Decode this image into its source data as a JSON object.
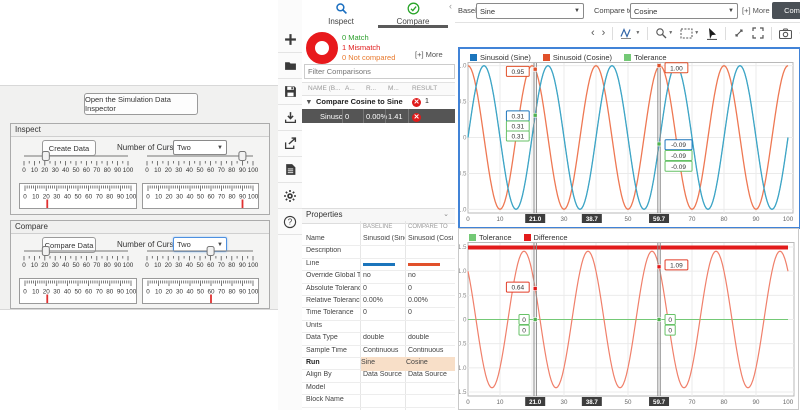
{
  "left_panel": {
    "open_button": "Open the Simulation Data Inspector",
    "scale": {
      "min": 0,
      "max": 100,
      "step": 10
    },
    "sections": [
      {
        "title": "Inspect",
        "button": "Create Data",
        "cursors_label": "Number of Cursors",
        "cursors_value": "Two",
        "slider_values": [
          21,
          90
        ],
        "gauge_values": [
          21,
          90
        ],
        "dropdown_focused": false
      },
      {
        "title": "Compare",
        "button": "Compare Data",
        "cursors_label": "Number of Cursors",
        "cursors_value": "Two",
        "slider_values": [
          21,
          60
        ],
        "gauge_values": [
          21,
          60
        ],
        "dropdown_focused": true
      }
    ]
  },
  "toolbar": {
    "icons": [
      "add",
      "open-folder",
      "save",
      "import",
      "export",
      "report",
      "settings",
      "help"
    ]
  },
  "middle_panel": {
    "tabs": [
      {
        "label": "Inspect",
        "active": false
      },
      {
        "label": "Compare",
        "active": true
      }
    ],
    "summary": {
      "match": "0 Match",
      "mismatch": "1 Mismatch",
      "not_compared": "0 Not compared",
      "more_link": "[+] More",
      "match_color": "#2da02d",
      "mismatch_color": "#e01b1b",
      "not_compared_color": "#e87a2e"
    },
    "filter_placeholder": "Filter Comparisons",
    "comparison_table": {
      "headers": [
        "NAME (B...",
        "A...",
        "R...",
        "M...",
        "RESULT"
      ],
      "group_row": {
        "label": "Compare Cosine to Sine",
        "result_count": "1"
      },
      "rows": [
        {
          "name": "Sinusoid",
          "abs": "0",
          "rel": "0.00%",
          "max": "1.41",
          "result": "mismatch",
          "selected": true
        }
      ]
    },
    "properties": {
      "title": "Properties",
      "columns": [
        "BASELINE",
        "COMPARE TO"
      ],
      "rows": [
        {
          "label": "Name",
          "baseline": "Sinusoid (Sine)",
          "compare": "Sinusoid (Cosi"
        },
        {
          "label": "Description",
          "baseline": "",
          "compare": ""
        },
        {
          "label": "Line",
          "baseline": "#1b75bc",
          "compare": "#e1502a",
          "is_line": true
        },
        {
          "label": "Override Global Tole",
          "baseline": "no",
          "compare": "no"
        },
        {
          "label": "Absolute Tolerance",
          "baseline": "0",
          "compare": "0"
        },
        {
          "label": "Relative Tolerance",
          "baseline": "0.00%",
          "compare": "0.00%"
        },
        {
          "label": "Time Tolerance",
          "baseline": "0",
          "compare": "0"
        },
        {
          "label": "Units",
          "baseline": "",
          "compare": ""
        },
        {
          "label": "Data Type",
          "baseline": "double",
          "compare": "double"
        },
        {
          "label": "Sample Time",
          "baseline": "Continuous",
          "compare": "Continuous"
        },
        {
          "label": "Run",
          "baseline": "Sine",
          "compare": "Cosine",
          "highlight": true,
          "bold": true
        },
        {
          "label": "Align By",
          "baseline": "Data Source",
          "compare": "Data Source"
        },
        {
          "label": "Model",
          "baseline": "",
          "compare": ""
        },
        {
          "label": "Block Name",
          "baseline": "",
          "compare": ""
        }
      ],
      "highlight_color": "#f8dfc8"
    }
  },
  "right_panel": {
    "baseline_label": "Baseline:",
    "baseline_value": "Sine",
    "compare_label": "Compare to:",
    "compare_value": "Cosine",
    "more_link": "[+] More",
    "compare_button": "Com",
    "chart_toolbar_icons": [
      "previous",
      "next",
      "signal-trace",
      "zoom",
      "fit-to-view",
      "pointer",
      "expand",
      "fullscreen",
      "snapshot",
      "chart-settings"
    ]
  },
  "chart_data": [
    {
      "type": "line",
      "name": "baseline-vs-compare",
      "x_range": [
        0,
        100
      ],
      "y_range": [
        -1.05,
        1.05
      ],
      "x_ticks_shown": [
        0,
        10,
        30,
        50,
        70,
        80,
        90,
        100
      ],
      "y_tick_labels": [
        "1.0",
        "0.5",
        "0",
        "-0.5",
        "-1.0"
      ],
      "y_tick_values": [
        1.0,
        0.5,
        0,
        -0.5,
        -1.0
      ],
      "legend": [
        {
          "label": "Sinusoid (Sine)",
          "color": "#1b75bc"
        },
        {
          "label": "Sinusoid (Cosine)",
          "color": "#e1502a"
        },
        {
          "label": "Tolerance",
          "color": "#74c976"
        }
      ],
      "series": [
        {
          "name": "Tolerance",
          "fn": "sin",
          "amplitude": 1,
          "period": 20,
          "color": "#74c976",
          "width": 1
        },
        {
          "name": "Sinusoid (Cosine)",
          "fn": "cos",
          "amplitude": 1,
          "period": 20,
          "color": "#ee7853",
          "width": 1.3
        },
        {
          "name": "Sinusoid (Sine)",
          "fn": "sin",
          "amplitude": 1,
          "period": 20,
          "color": "#3da4c9",
          "width": 1.3
        }
      ],
      "cursors": [
        {
          "t": 21.0,
          "axis_label": "21.0",
          "side": "left",
          "labels": [
            {
              "text": "0.95",
              "color": "#e1502a",
              "v": 0.92
            },
            {
              "text": "0.31",
              "color": "#1b75bc",
              "v": 0.3
            },
            {
              "text": "0.31",
              "color": "#67c167",
              "v": 0.16
            },
            {
              "text": "0.31",
              "color": "#67c167",
              "v": 0.02
            }
          ]
        },
        {
          "t": 59.7,
          "axis_label": "59.7",
          "side": "right",
          "labels": [
            {
              "text": "1.00",
              "color": "#e1502a",
              "v": 0.97
            },
            {
              "text": "-0.09",
              "color": "#1b75bc",
              "v": -0.1
            },
            {
              "text": "-0.09",
              "color": "#67c167",
              "v": -0.25
            },
            {
              "text": "-0.09",
              "color": "#67c167",
              "v": -0.4
            }
          ]
        }
      ],
      "delta_label": {
        "t": 38.7,
        "text": "38.7"
      },
      "markers": [
        {
          "t": 21,
          "v": 0.95,
          "color": "#e1502a"
        },
        {
          "t": 21,
          "v": 0.31,
          "color": "#52b152"
        },
        {
          "t": 59.7,
          "v": 1.0,
          "color": "#e1502a"
        },
        {
          "t": 59.7,
          "v": -0.09,
          "color": "#52b152"
        }
      ],
      "selected": true
    },
    {
      "type": "line",
      "name": "tolerance-vs-difference",
      "x_range": [
        0,
        100
      ],
      "y_range": [
        -1.61,
        1.61
      ],
      "x_ticks_shown": [
        0,
        10,
        30,
        50,
        70,
        80,
        90,
        100
      ],
      "y_tick_labels": [
        "1.5",
        "1.0",
        "0.5",
        "0",
        "-0.5",
        "-1.0",
        "-1.5"
      ],
      "y_tick_values": [
        1.5,
        1.0,
        0.5,
        0,
        -0.5,
        -1.0,
        -1.5
      ],
      "legend": [
        {
          "label": "Tolerance",
          "color": "#74c976"
        },
        {
          "label": "Difference",
          "color": "#e21b1b"
        }
      ],
      "series": [
        {
          "name": "Tolerance",
          "fn": "const0",
          "amplitude": 0,
          "period": 20,
          "color": "#74c976",
          "width": 1
        },
        {
          "name": "Difference",
          "fn": "cos-minus-sin",
          "amplitude": 1,
          "period": 20,
          "color": "#f0806b",
          "width": 1.2
        }
      ],
      "out_of_tolerance_band": {
        "from": 0,
        "to": 100,
        "color": "#e21b1b"
      },
      "cursors": [
        {
          "t": 21.0,
          "axis_label": "21.0",
          "side": "left",
          "labels": [
            {
              "text": "0.64",
              "color": "#e23c28",
              "v": 0.67
            },
            {
              "text": "0",
              "color": "#67c167",
              "v": 0.0
            },
            {
              "text": "0",
              "color": "#67c167",
              "v": -0.22
            }
          ]
        },
        {
          "t": 59.7,
          "axis_label": "59.7",
          "side": "right",
          "labels": [
            {
              "text": "1.09",
              "color": "#e23c28",
              "v": 1.13
            },
            {
              "text": "0",
              "color": "#67c167",
              "v": 0.0
            },
            {
              "text": "0",
              "color": "#67c167",
              "v": -0.22
            }
          ]
        }
      ],
      "delta_label": {
        "t": 38.7,
        "text": "38.7"
      },
      "markers": [
        {
          "t": 21,
          "v": 0.64,
          "color": "#e21b1b"
        },
        {
          "t": 21,
          "v": 0,
          "color": "#52b152"
        },
        {
          "t": 59.7,
          "v": 1.09,
          "color": "#e21b1b"
        },
        {
          "t": 59.7,
          "v": 0,
          "color": "#52b152"
        }
      ],
      "selected": false
    }
  ]
}
